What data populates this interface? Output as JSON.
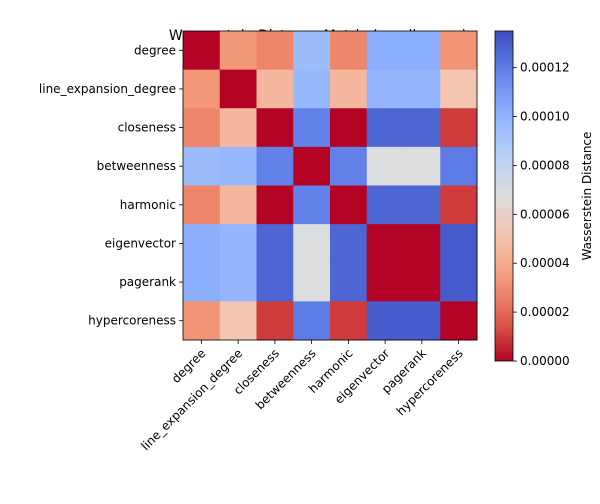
{
  "chart_data": {
    "type": "heatmap",
    "title": "Wasserstein Distance Matrix (email-enron)",
    "rows": [
      "degree",
      "line_expansion_degree",
      "closeness",
      "betweenness",
      "harmonic",
      "eigenvector",
      "pagerank",
      "hypercoreness"
    ],
    "columns": [
      "degree",
      "line_expansion_degree",
      "closeness",
      "betweenness",
      "harmonic",
      "eigenvector",
      "pagerank",
      "hypercoreness"
    ],
    "values": [
      [
        0.0,
        3.3e-05,
        2.8e-05,
        9.5e-05,
        2.8e-05,
        0.000102,
        0.000102,
        3.2e-05
      ],
      [
        3.3e-05,
        0.0,
        4.6e-05,
        9.7e-05,
        4.6e-05,
        9.8e-05,
        9.8e-05,
        5.2e-05
      ],
      [
        2.8e-05,
        4.6e-05,
        0.0,
        0.000118,
        0.0,
        0.000127,
        0.000127,
        1e-05
      ],
      [
        9.5e-05,
        9.7e-05,
        0.000118,
        0.0,
        0.000118,
        6.8e-05,
        6.8e-05,
        0.00012
      ],
      [
        2.8e-05,
        4.6e-05,
        0.0,
        0.000118,
        0.0,
        0.000127,
        0.000127,
        1e-05
      ],
      [
        0.000102,
        9.8e-05,
        0.000127,
        6.8e-05,
        0.000127,
        0.0,
        0.0,
        0.00013
      ],
      [
        0.000102,
        9.8e-05,
        0.000127,
        6.8e-05,
        0.000127,
        0.0,
        0.0,
        0.00013
      ],
      [
        3.2e-05,
        5.2e-05,
        1e-05,
        0.00012,
        1e-05,
        0.00013,
        0.00013,
        0.0
      ]
    ],
    "colormap": "coolwarm_r",
    "vmin": 0.0,
    "vmax": 0.000135,
    "colorbar": {
      "label": "Wasserstein Distance",
      "ticks": [
        0.0,
        2e-05,
        4e-05,
        6e-05,
        8e-05,
        0.0001,
        0.00012
      ],
      "tick_labels": [
        "0.00000",
        "0.00002",
        "0.00004",
        "0.00006",
        "0.00008",
        "0.00010",
        "0.00012"
      ]
    },
    "xtick_rotation": 45
  }
}
